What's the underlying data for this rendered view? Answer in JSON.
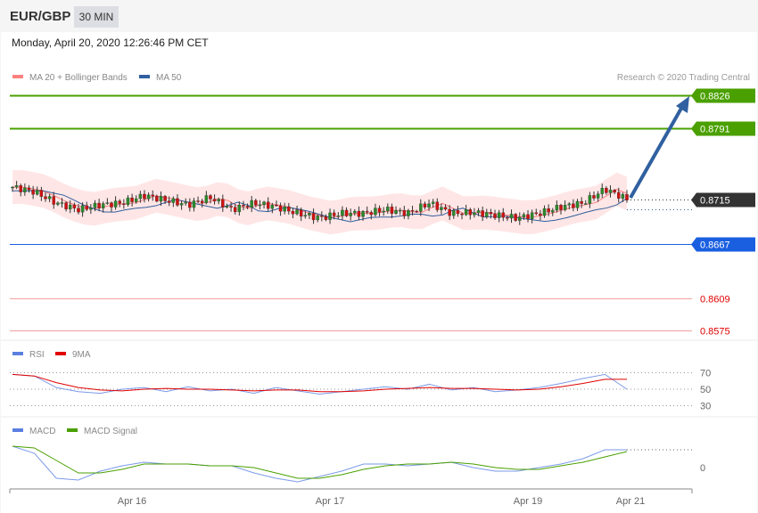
{
  "header": {
    "symbol": "EUR/GBP",
    "timeframe": "30 MIN",
    "datetime": "Monday, April 20, 2020 12:26:46 PM CET"
  },
  "legend_main": [
    {
      "label": "MA 20 + Bollinger Bands",
      "color": "#ff8080"
    },
    {
      "label": "MA 50",
      "color": "#3060a0"
    }
  ],
  "legend_rsi": [
    {
      "label": "RSI",
      "color": "#5b7fe0"
    },
    {
      "label": "9MA",
      "color": "#e00000"
    }
  ],
  "legend_macd": [
    {
      "label": "MACD",
      "color": "#5b7fe0"
    },
    {
      "label": "MACD Signal",
      "color": "#4aa000"
    }
  ],
  "copyright": "Research © 2020 Trading Central",
  "chart_data": {
    "type": "candlestick",
    "levels": [
      {
        "value": "0.8826",
        "color": "#4aa000",
        "kind": "target"
      },
      {
        "value": "0.8791",
        "color": "#4aa000",
        "kind": "target"
      },
      {
        "value": "0.8715",
        "color": "#333333",
        "kind": "current"
      },
      {
        "value": "0.8667",
        "color": "#1a5fe0",
        "kind": "pivot"
      },
      {
        "value": "0.8609",
        "color": "#e00000",
        "kind": "support"
      },
      {
        "value": "0.8575",
        "color": "#e00000",
        "kind": "support"
      }
    ],
    "closes": [
      0.8728,
      0.8723,
      0.8711,
      0.8704,
      0.8709,
      0.8711,
      0.8719,
      0.8714,
      0.8709,
      0.8717,
      0.8704,
      0.8711,
      0.8707,
      0.87,
      0.8695,
      0.87,
      0.87,
      0.8704,
      0.87,
      0.8711,
      0.87,
      0.8701,
      0.8698,
      0.8695,
      0.87,
      0.8707,
      0.8711,
      0.8726,
      0.8715
    ],
    "x_ticks": [
      "Apr 16",
      "Apr 17",
      "Apr 19",
      "Apr 21"
    ],
    "rsi": {
      "ticks": [
        "70",
        "50",
        "30"
      ],
      "rsi": [
        68,
        66,
        52,
        47,
        45,
        50,
        52,
        47,
        53,
        48,
        50,
        45,
        52,
        48,
        44,
        47,
        50,
        53,
        50,
        56,
        49,
        52,
        47,
        49,
        52,
        57,
        63,
        68,
        50
      ],
      "ma9": [
        68,
        66,
        58,
        52,
        49,
        48,
        50,
        51,
        50,
        50,
        49,
        48,
        49,
        49,
        47,
        47,
        48,
        50,
        51,
        52,
        51,
        51,
        50,
        49,
        50,
        53,
        57,
        62,
        62
      ]
    },
    "macd": {
      "ticks": [
        "0"
      ],
      "macd": [
        0.0012,
        0.0008,
        -0.0006,
        -0.0007,
        -0.0002,
        0.0001,
        0.0003,
        0.0002,
        0.0002,
        0.0001,
        0.0001,
        -0.0003,
        -0.0006,
        -0.0008,
        -0.0005,
        -0.0002,
        0.0002,
        0.0002,
        0.0001,
        0.0002,
        0.0003,
        0.0,
        -0.0002,
        -0.0002,
        0.0,
        0.0002,
        0.0005,
        0.001,
        0.001
      ],
      "signal": [
        0.0012,
        0.0011,
        0.0004,
        -0.0003,
        -0.0003,
        -0.0001,
        0.0002,
        0.0002,
        0.0002,
        0.0001,
        0.0001,
        0.0,
        -0.0003,
        -0.0006,
        -0.0006,
        -0.0004,
        -0.0001,
        0.0001,
        0.0002,
        0.0002,
        0.0003,
        0.0002,
        0.0,
        -0.0001,
        -0.0001,
        0.0001,
        0.0003,
        0.0006,
        0.0009
      ]
    }
  }
}
